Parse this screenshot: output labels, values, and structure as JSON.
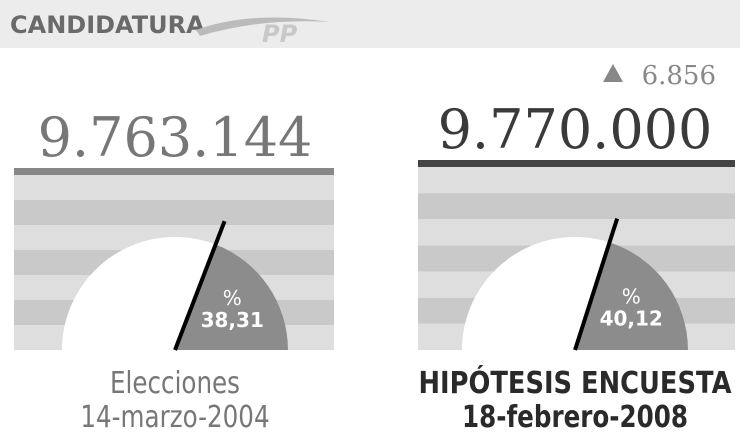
{
  "header": {
    "title": "CANDIDATURA",
    "logo": "PP"
  },
  "chart_data": {
    "type": "half-pie",
    "panels": [
      {
        "votes": "9.763.144",
        "percent_symbol": "%",
        "percent": {
          "value": 38.31,
          "label": "38,31"
        },
        "caption": [
          "Elecciones",
          "14-marzo-2004"
        ]
      },
      {
        "change": "6.856",
        "votes": "9.770.000",
        "percent_symbol": "%",
        "percent": {
          "value": 40.12,
          "label": "40,12"
        },
        "caption": [
          "HIPÓTESIS ENCUESTA",
          "18-febrero-2008"
        ]
      }
    ]
  }
}
